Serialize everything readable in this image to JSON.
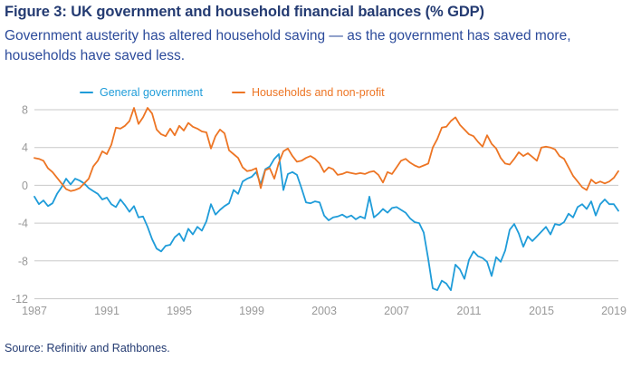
{
  "figure": {
    "title": "Figure 3: UK government and household financial balances (% GDP)",
    "subtitle": "Government austerity has altered household saving — as the government has saved more, households have saved less.",
    "source": "Source: Refinitiv and Rathbones."
  },
  "colors": {
    "title_navy": "#243b72",
    "subtitle_blue": "#2c4b9b",
    "source_navy": "#243b72",
    "gridline": "#c9c9c9",
    "tick_text": "#999999",
    "government_blue": "#1f9cd9",
    "households_orange": "#ed7524",
    "background": "#ffffff"
  },
  "chart_data": {
    "type": "line",
    "title": "Figure 3: UK government and household financial balances (% GDP)",
    "xlabel": "",
    "ylabel": "% GDP",
    "x_start": 1987,
    "x_step_years": 0.25,
    "xlim": [
      1987,
      2019.25
    ],
    "ylim": [
      -12,
      8
    ],
    "x_ticks": [
      1987,
      1991,
      1995,
      1999,
      2003,
      2007,
      2011,
      2015,
      2019
    ],
    "y_ticks": [
      8,
      4,
      0,
      -4,
      -8,
      -12
    ],
    "grid": true,
    "legend_position": "top",
    "series": [
      {
        "name": "General government",
        "color": "#1f9cd9",
        "values": [
          -1.2,
          -2.0,
          -1.6,
          -2.2,
          -1.9,
          -0.9,
          -0.2,
          0.7,
          0.1,
          0.7,
          0.5,
          0.2,
          -0.3,
          -0.6,
          -0.9,
          -1.5,
          -1.3,
          -2.0,
          -2.3,
          -1.5,
          -2.1,
          -2.8,
          -2.2,
          -3.4,
          -3.3,
          -4.4,
          -5.7,
          -6.7,
          -7.0,
          -6.4,
          -6.3,
          -5.5,
          -5.1,
          -5.9,
          -4.6,
          -5.2,
          -4.4,
          -4.8,
          -3.8,
          -2.0,
          -3.1,
          -2.6,
          -2.2,
          -1.9,
          -0.5,
          -0.9,
          0.4,
          0.7,
          0.9,
          1.4,
          0.1,
          1.7,
          2.0,
          2.8,
          3.3,
          -0.5,
          1.2,
          1.4,
          1.1,
          -0.3,
          -1.8,
          -1.9,
          -1.7,
          -1.8,
          -3.2,
          -3.7,
          -3.4,
          -3.3,
          -3.1,
          -3.4,
          -3.2,
          -3.6,
          -3.3,
          -3.5,
          -1.2,
          -3.4,
          -3.0,
          -2.5,
          -2.9,
          -2.4,
          -2.3,
          -2.6,
          -2.9,
          -3.5,
          -3.9,
          -4.0,
          -5.0,
          -7.8,
          -10.9,
          -11.1,
          -10.1,
          -10.4,
          -11.1,
          -8.4,
          -8.9,
          -9.9,
          -7.9,
          -7.0,
          -7.5,
          -7.7,
          -8.1,
          -9.6,
          -7.6,
          -8.1,
          -6.9,
          -4.7,
          -4.1,
          -5.1,
          -6.5,
          -5.4,
          -5.9,
          -5.4,
          -4.9,
          -4.4,
          -5.2,
          -4.1,
          -4.2,
          -3.9,
          -3.0,
          -3.4,
          -2.3,
          -2.0,
          -2.5,
          -1.7,
          -3.2,
          -2.0,
          -1.5,
          -2.0,
          -2.0,
          -2.7
        ]
      },
      {
        "name": "Households and non-profit",
        "color": "#ed7524",
        "values": [
          2.9,
          2.8,
          2.6,
          1.8,
          1.4,
          0.8,
          0.2,
          -0.4,
          -0.6,
          -0.5,
          -0.3,
          0.2,
          0.7,
          2.0,
          2.6,
          3.6,
          3.3,
          4.3,
          6.1,
          6.0,
          6.3,
          6.8,
          8.2,
          6.5,
          7.2,
          8.2,
          7.6,
          5.9,
          5.4,
          5.2,
          6.0,
          5.3,
          6.3,
          5.8,
          6.6,
          6.2,
          6.0,
          5.7,
          5.6,
          3.9,
          5.2,
          5.9,
          5.5,
          3.7,
          3.3,
          2.9,
          1.9,
          1.5,
          1.6,
          1.8,
          -0.3,
          1.6,
          1.8,
          0.7,
          2.4,
          3.6,
          3.9,
          3.1,
          2.5,
          2.6,
          2.9,
          3.1,
          2.8,
          2.3,
          1.4,
          1.9,
          1.7,
          1.1,
          1.2,
          1.4,
          1.3,
          1.2,
          1.3,
          1.2,
          1.4,
          1.5,
          1.1,
          0.3,
          1.4,
          1.2,
          1.9,
          2.6,
          2.8,
          2.4,
          2.1,
          1.9,
          2.1,
          2.3,
          4.0,
          4.9,
          6.1,
          6.2,
          6.8,
          7.2,
          6.4,
          5.9,
          5.4,
          5.2,
          4.6,
          4.1,
          5.3,
          4.4,
          3.9,
          2.9,
          2.3,
          2.2,
          2.8,
          3.5,
          3.1,
          3.4,
          3.0,
          2.6,
          4.0,
          4.1,
          4.0,
          3.8,
          3.1,
          2.8,
          1.9,
          1.0,
          0.4,
          -0.2,
          -0.5,
          0.6,
          0.2,
          0.4,
          0.2,
          0.4,
          0.8,
          1.5
        ]
      }
    ]
  }
}
